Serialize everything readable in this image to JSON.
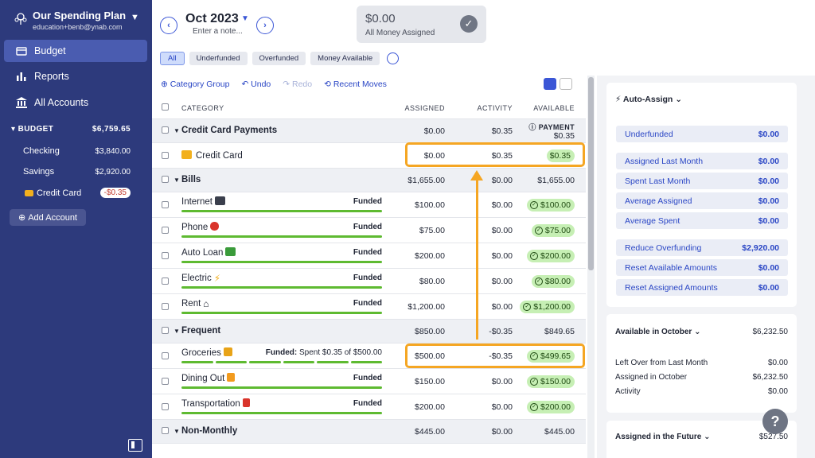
{
  "sidebar": {
    "plan_name": "Our Spending Plan",
    "plan_email": "education+benb@ynab.com",
    "nav": [
      {
        "label": "Budget",
        "icon": "budget-icon",
        "active": true
      },
      {
        "label": "Reports",
        "icon": "reports-icon"
      },
      {
        "label": "All Accounts",
        "icon": "bank-icon"
      }
    ],
    "budget_section": {
      "label": "BUDGET",
      "total": "$6,759.65"
    },
    "accounts": [
      {
        "name": "Checking",
        "balance": "$3,840.00"
      },
      {
        "name": "Savings",
        "balance": "$2,920.00"
      },
      {
        "name": "Credit Card",
        "balance": "-$0.35"
      }
    ],
    "add_account": "Add Account"
  },
  "header": {
    "month": "Oct 2023",
    "note_placeholder": "Enter a note...",
    "assigned_amount": "$0.00",
    "assigned_label": "All Money Assigned"
  },
  "filters": [
    "All",
    "Underfunded",
    "Overfunded",
    "Money Available"
  ],
  "toolbar": {
    "category_group": "Category Group",
    "undo": "Undo",
    "redo": "Redo",
    "recent_moves": "Recent Moves"
  },
  "table": {
    "headers": {
      "category": "CATEGORY",
      "assigned": "ASSIGNED",
      "activity": "ACTIVITY",
      "available": "AVAILABLE"
    },
    "groups": {
      "cc": {
        "name": "Credit Card Payments",
        "assigned": "$0.00",
        "activity": "$0.35",
        "available_label": "PAYMENT",
        "available": "$0.35"
      },
      "bills": {
        "name": "Bills",
        "assigned": "$1,655.00",
        "activity": "$0.00",
        "available": "$1,655.00"
      },
      "frequent": {
        "name": "Frequent",
        "assigned": "$850.00",
        "activity": "-$0.35",
        "available": "$849.65"
      },
      "nonmonthly": {
        "name": "Non-Monthly",
        "assigned": "$445.00",
        "activity": "$0.00",
        "available": "$445.00"
      }
    },
    "rows": {
      "creditcard": {
        "name": "Credit Card",
        "assigned": "$0.00",
        "activity": "$0.35",
        "available": "$0.35"
      },
      "internet": {
        "name": "Internet",
        "status": "Funded",
        "assigned": "$100.00",
        "activity": "$0.00",
        "available": "$100.00"
      },
      "phone": {
        "name": "Phone",
        "status": "Funded",
        "assigned": "$75.00",
        "activity": "$0.00",
        "available": "$75.00"
      },
      "autoloan": {
        "name": "Auto Loan",
        "status": "Funded",
        "assigned": "$200.00",
        "activity": "$0.00",
        "available": "$200.00"
      },
      "electric": {
        "name": "Electric",
        "status": "Funded",
        "assigned": "$80.00",
        "activity": "$0.00",
        "available": "$80.00"
      },
      "rent": {
        "name": "Rent",
        "status": "Funded",
        "assigned": "$1,200.00",
        "activity": "$0.00",
        "available": "$1,200.00"
      },
      "groceries": {
        "name": "Groceries",
        "status_bold": "Funded:",
        "status_rest": " Spent $0.35 of $500.00",
        "assigned": "$500.00",
        "activity": "-$0.35",
        "available": "$499.65"
      },
      "dining": {
        "name": "Dining Out",
        "status": "Funded",
        "assigned": "$150.00",
        "activity": "$0.00",
        "available": "$150.00"
      },
      "transport": {
        "name": "Transportation",
        "status": "Funded",
        "assigned": "$200.00",
        "activity": "$0.00",
        "available": "$200.00"
      }
    }
  },
  "right_panel": {
    "auto_assign": {
      "title": "Auto-Assign",
      "items": [
        {
          "label": "Underfunded",
          "value": "$0.00"
        },
        {
          "label": "Assigned Last Month",
          "value": "$0.00"
        },
        {
          "label": "Spent Last Month",
          "value": "$0.00"
        },
        {
          "label": "Average Assigned",
          "value": "$0.00"
        },
        {
          "label": "Average Spent",
          "value": "$0.00"
        },
        {
          "label": "Reduce Overfunding",
          "value": "$2,920.00"
        },
        {
          "label": "Reset Available Amounts",
          "value": "$0.00"
        },
        {
          "label": "Reset Assigned Amounts",
          "value": "$0.00"
        }
      ]
    },
    "available": {
      "title": "Available in October",
      "total": "$6,232.50",
      "lines": [
        {
          "label": "Left Over from Last Month",
          "value": "$0.00"
        },
        {
          "label": "Assigned in October",
          "value": "$6,232.50"
        },
        {
          "label": "Activity",
          "value": "$0.00"
        }
      ]
    },
    "future": {
      "title": "Assigned in the Future",
      "total": "$527.50"
    }
  },
  "colors": {
    "sidebar": "#2d3a7c",
    "accent": "#3b56d6",
    "funded": "#5eba31",
    "highlight": "#f5a623"
  }
}
